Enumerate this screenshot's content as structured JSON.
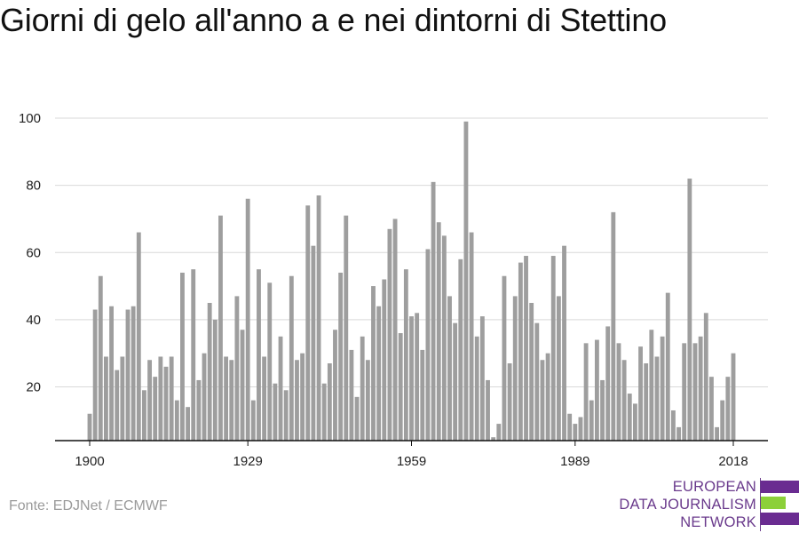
{
  "title": "Giorni di gelo all'anno a e nei dintorni di Stettino",
  "source": "Fonte: EDJNet / ECMWF",
  "logo": {
    "lines": [
      "EUROPEAN",
      "DATA JOURNALISM",
      "NETWORK"
    ],
    "colors": {
      "purple": "#6a2c91",
      "green": "#8cd03a"
    }
  },
  "colors": {
    "bar": "#9e9e9e",
    "grid": "#d9d9d9",
    "axis": "#111111"
  },
  "chart_data": {
    "type": "bar",
    "title": "Giorni di gelo all'anno a e nei dintorni di Stettino",
    "xlabel": "",
    "ylabel": "",
    "ylim": [
      4,
      100
    ],
    "yticks": [
      20,
      40,
      60,
      80,
      100
    ],
    "xticks": [
      1900,
      1929,
      1959,
      1989,
      2018
    ],
    "grid": true,
    "categories": [
      1900,
      1901,
      1902,
      1903,
      1904,
      1905,
      1906,
      1907,
      1908,
      1909,
      1910,
      1911,
      1912,
      1913,
      1914,
      1915,
      1916,
      1917,
      1918,
      1919,
      1920,
      1921,
      1922,
      1923,
      1924,
      1925,
      1926,
      1927,
      1928,
      1929,
      1930,
      1931,
      1932,
      1933,
      1934,
      1935,
      1936,
      1937,
      1938,
      1939,
      1940,
      1941,
      1942,
      1943,
      1944,
      1945,
      1946,
      1947,
      1948,
      1949,
      1950,
      1951,
      1952,
      1953,
      1954,
      1955,
      1956,
      1957,
      1958,
      1959,
      1960,
      1961,
      1962,
      1963,
      1964,
      1965,
      1966,
      1967,
      1968,
      1969,
      1970,
      1971,
      1972,
      1973,
      1974,
      1975,
      1976,
      1977,
      1978,
      1979,
      1980,
      1981,
      1982,
      1983,
      1984,
      1985,
      1986,
      1987,
      1988,
      1989,
      1990,
      1991,
      1992,
      1993,
      1994,
      1995,
      1996,
      1997,
      1998,
      1999,
      2000,
      2001,
      2002,
      2003,
      2004,
      2005,
      2006,
      2007,
      2008,
      2009,
      2010,
      2011,
      2012,
      2013,
      2014,
      2015,
      2016,
      2017,
      2018
    ],
    "values": [
      12,
      43,
      53,
      29,
      44,
      25,
      29,
      43,
      44,
      66,
      19,
      28,
      23,
      29,
      26,
      29,
      16,
      54,
      14,
      55,
      22,
      30,
      45,
      40,
      71,
      29,
      28,
      47,
      37,
      76,
      16,
      55,
      29,
      51,
      21,
      35,
      19,
      53,
      28,
      30,
      74,
      62,
      77,
      21,
      27,
      37,
      54,
      71,
      31,
      17,
      35,
      28,
      50,
      44,
      52,
      67,
      70,
      36,
      55,
      41,
      42,
      31,
      61,
      81,
      69,
      65,
      47,
      39,
      58,
      99,
      66,
      35,
      41,
      22,
      5,
      9,
      53,
      27,
      47,
      57,
      59,
      45,
      39,
      28,
      30,
      59,
      47,
      62,
      12,
      9,
      11,
      33,
      16,
      34,
      22,
      38,
      72,
      33,
      28,
      18,
      15,
      32,
      27,
      37,
      29,
      35,
      48,
      13,
      8,
      33,
      82,
      33,
      35,
      42,
      23,
      8,
      16,
      23,
      30
    ]
  }
}
